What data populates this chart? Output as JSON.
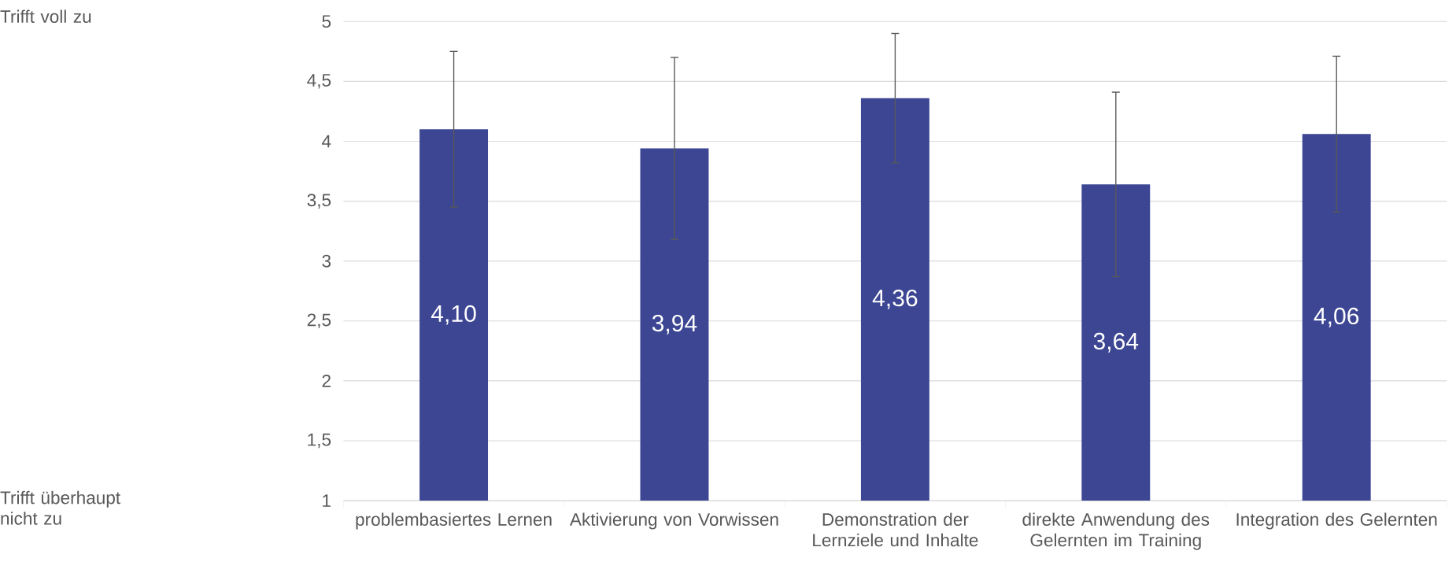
{
  "chart_data": {
    "type": "bar",
    "categories": [
      "problembasiertes Lernen",
      "Aktivierung von Vorwissen",
      "Demonstration der Lernziele und Inhalte",
      "direkte Anwendung des Gelernten im Training",
      "Integration des Gelernten"
    ],
    "values": [
      4.1,
      3.94,
      4.36,
      3.64,
      4.06
    ],
    "value_labels": [
      "4,10",
      "3,94",
      "4,36",
      "3,64",
      "4,06"
    ],
    "errors": [
      0.65,
      0.76,
      0.54,
      0.77,
      0.65
    ],
    "color": "#3c4693",
    "ylim": [
      1,
      5
    ],
    "yticks": [
      1,
      {
        "value": 1.5,
        "label": "1,5"
      },
      2,
      {
        "value": 2.5,
        "label": "2,5"
      },
      3,
      {
        "value": 3.5,
        "label": "3,5"
      },
      4,
      {
        "value": 4.5,
        "label": "4,5"
      },
      5
    ],
    "grid": "y",
    "annotations": [
      "Trifft voll zu",
      "Trifft überhaupt nicht zu"
    ]
  }
}
